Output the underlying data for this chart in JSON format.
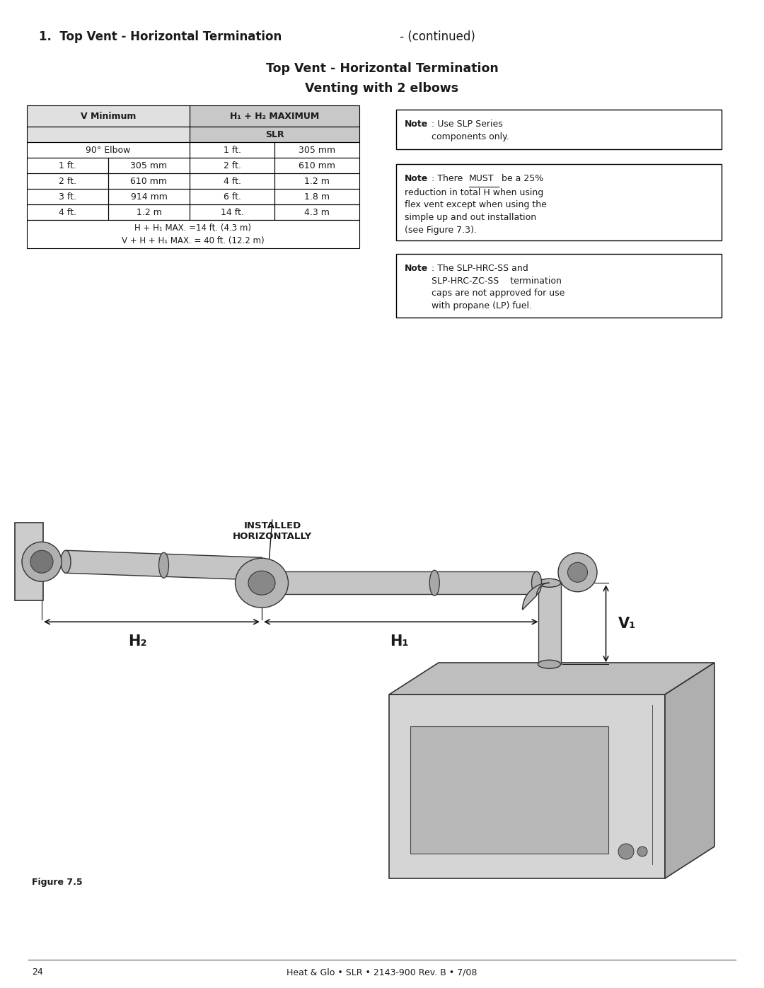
{
  "page_title_bold": "1.  Top Vent - Horizontal Termination",
  "page_title_normal": " - (continued)",
  "section_title_line1": "Top Vent - Horizontal Termination",
  "section_title_line2": "Venting with 2 elbows",
  "table_header_col1": "V Minimum",
  "table_header_col2": "H₁ + H₂ MAXIMUM",
  "table_subheader": "SLR",
  "table_row0_col1": "90° Elbow",
  "table_row0_col2": "1 ft.",
  "table_row0_col3": "305 mm",
  "table_rows": [
    [
      "1 ft.",
      "305 mm",
      "2 ft.",
      "610 mm"
    ],
    [
      "2 ft.",
      "610 mm",
      "4 ft.",
      "1.2 m"
    ],
    [
      "3 ft.",
      "914 mm",
      "6 ft.",
      "1.8 m"
    ],
    [
      "4 ft.",
      "1.2 m",
      "14 ft.",
      "4.3 m"
    ]
  ],
  "table_footer_line1": "H + H₁ MAX. =14 ft. (4.3 m)",
  "table_footer_line2": "V + H + H₁ MAX. = 40 ft. (12.2 m)",
  "note1_text": ": Use SLP Series\ncomponents only.",
  "note2_pre": ": There ",
  "note2_must": "MUST",
  "note2_post": " be a 25%\nreduction in total H when using\nflex vent except when using the\nsimple up and out installation\n(see Figure 7.3).",
  "note3_text": ": The SLP-HRC-SS and\nSLP-HRC-ZC-SS    termination\ncaps are not approved for use\nwith propane (LP) fuel.",
  "label_h2": "H₂",
  "label_h1": "H₁",
  "label_v1": "V₁",
  "label_installed": "INSTALLED\nHORIZONTALLY",
  "figure_label": "Figure 7.5",
  "footer_text": "Heat & Glo • SLR • 2143-900 Rev. B • 7/08",
  "footer_page": "24",
  "bg_color": "#ffffff",
  "text_color": "#1a1a1a",
  "border_color": "#000000"
}
